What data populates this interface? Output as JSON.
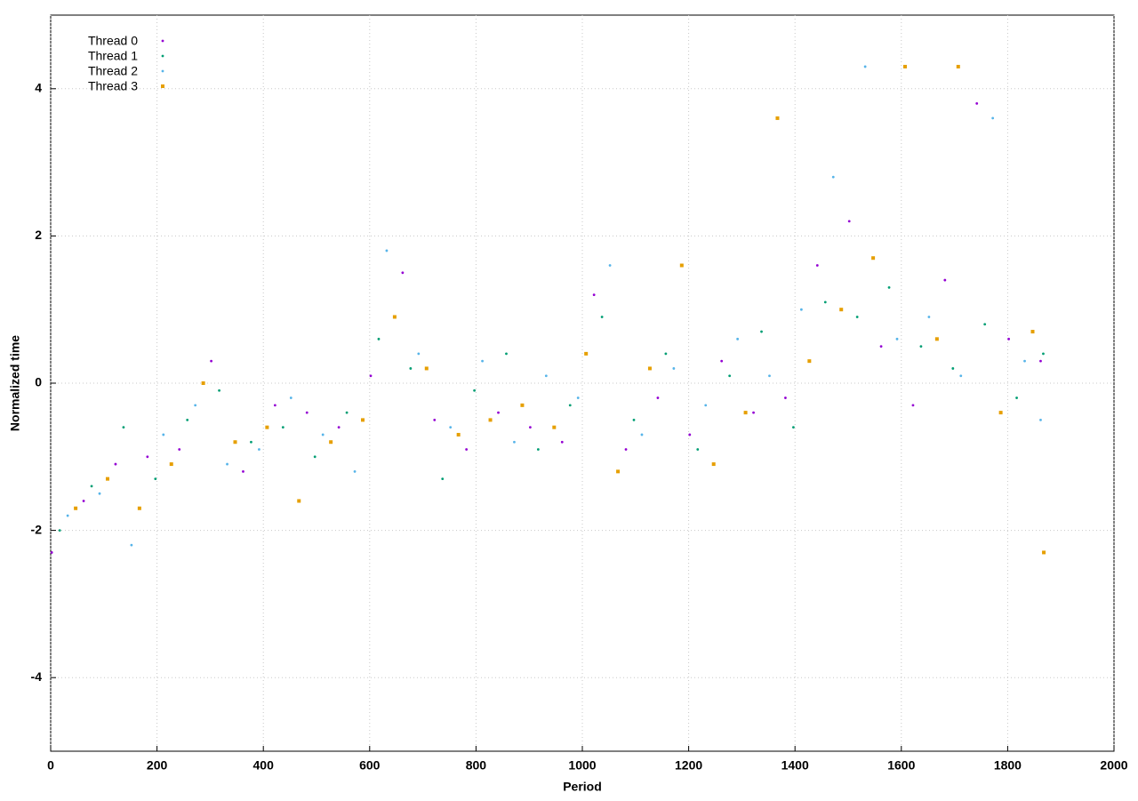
{
  "chart_data": {
    "type": "scatter",
    "xlabel": "Period",
    "ylabel": "Normalized time",
    "xlim": [
      0,
      2000
    ],
    "xticks": [
      0,
      200,
      400,
      600,
      800,
      1000,
      1200,
      1400,
      1600,
      1800,
      2000
    ],
    "ylim": [
      -5,
      5
    ],
    "yticks": [
      -4,
      -2,
      0,
      2,
      4
    ],
    "grid": true,
    "legend": "top-left",
    "series": [
      {
        "name": "Thread 0",
        "color": "#9400d3",
        "marker": "dot",
        "x": [
          2,
          62,
          122,
          182,
          242,
          302,
          362,
          422,
          482,
          542,
          602,
          662,
          722,
          782,
          842,
          902,
          962,
          1022,
          1082,
          1142,
          1202,
          1262,
          1322,
          1382,
          1442,
          1502,
          1562,
          1622,
          1682,
          1742,
          1802,
          1862
        ],
        "values": [
          -2.3,
          -1.6,
          -1.1,
          -1.0,
          -0.9,
          0.3,
          -1.2,
          -0.3,
          -0.4,
          -0.6,
          0.1,
          1.5,
          -0.5,
          -0.9,
          -0.4,
          -0.6,
          -0.8,
          1.2,
          -0.9,
          -0.2,
          -0.7,
          0.3,
          -0.4,
          -0.2,
          1.6,
          2.2,
          0.5,
          -0.3,
          1.4,
          3.8,
          0.6,
          0.3
        ]
      },
      {
        "name": "Thread 1",
        "color": "#009e73",
        "marker": "dot",
        "x": [
          17,
          77,
          137,
          197,
          257,
          317,
          377,
          437,
          497,
          557,
          617,
          677,
          737,
          797,
          857,
          917,
          977,
          1037,
          1097,
          1157,
          1217,
          1277,
          1337,
          1397,
          1457,
          1517,
          1577,
          1637,
          1697,
          1757,
          1817,
          1867
        ],
        "values": [
          -2.0,
          -1.4,
          -0.6,
          -1.3,
          -0.5,
          -0.1,
          -0.8,
          -0.6,
          -1.0,
          -0.4,
          0.6,
          0.2,
          -1.3,
          -0.1,
          0.4,
          -0.9,
          -0.3,
          0.9,
          -0.5,
          0.4,
          -0.9,
          0.1,
          0.7,
          -0.6,
          1.1,
          0.9,
          1.3,
          0.5,
          0.2,
          0.8,
          -0.2,
          0.4
        ]
      },
      {
        "name": "Thread 2",
        "color": "#56b4e9",
        "marker": "dot",
        "x": [
          32,
          92,
          152,
          212,
          272,
          332,
          392,
          452,
          512,
          572,
          632,
          692,
          752,
          812,
          872,
          932,
          992,
          1052,
          1112,
          1172,
          1232,
          1292,
          1352,
          1412,
          1472,
          1532,
          1592,
          1652,
          1712,
          1772,
          1832,
          1862
        ],
        "values": [
          -1.8,
          -1.5,
          -2.2,
          -0.7,
          -0.3,
          -1.1,
          -0.9,
          -0.2,
          -0.7,
          -1.2,
          1.8,
          0.4,
          -0.6,
          0.3,
          -0.8,
          0.1,
          -0.2,
          1.6,
          -0.7,
          0.2,
          -0.3,
          0.6,
          0.1,
          1.0,
          2.8,
          4.3,
          0.6,
          0.9,
          0.1,
          3.6,
          0.3,
          -0.5
        ]
      },
      {
        "name": "Thread 3",
        "color": "#e69f00",
        "marker": "square",
        "x": [
          47,
          107,
          167,
          227,
          287,
          347,
          407,
          467,
          527,
          587,
          647,
          707,
          767,
          827,
          887,
          947,
          1007,
          1067,
          1127,
          1187,
          1247,
          1307,
          1367,
          1427,
          1487,
          1547,
          1607,
          1667,
          1707,
          1787,
          1847,
          1868
        ],
        "values": [
          -1.7,
          -1.3,
          -1.7,
          -1.1,
          0.0,
          -0.8,
          -0.6,
          -1.6,
          -0.8,
          -0.5,
          0.9,
          0.2,
          -0.7,
          -0.5,
          -0.3,
          -0.6,
          0.4,
          -1.2,
          0.2,
          1.6,
          -1.1,
          -0.4,
          3.6,
          0.3,
          1.0,
          1.7,
          4.3,
          0.6,
          4.3,
          -0.4,
          0.7,
          -2.3
        ]
      }
    ]
  }
}
